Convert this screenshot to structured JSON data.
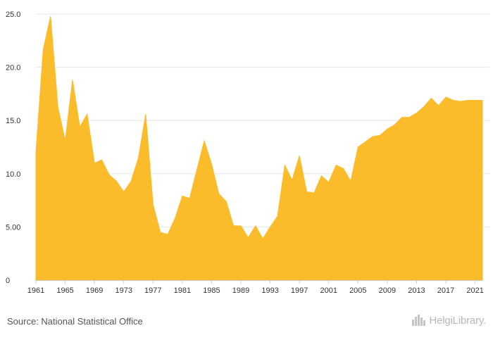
{
  "chart_data": {
    "type": "area",
    "title": "",
    "xlabel": "",
    "ylabel": "",
    "ylim": [
      0,
      25
    ],
    "y_ticks": [
      "0",
      "5.00",
      "10.0",
      "15.0",
      "20.0",
      "25.0"
    ],
    "y_tick_values": [
      0,
      5,
      10,
      15,
      20,
      25
    ],
    "x_ticks": [
      "1961",
      "1965",
      "1969",
      "1973",
      "1977",
      "1981",
      "1985",
      "1989",
      "1993",
      "1997",
      "2001",
      "2005",
      "2009",
      "2013",
      "2017",
      "2021"
    ],
    "grid": true,
    "legend": "none",
    "color": "#FBBC2C",
    "x": [
      1961,
      1962,
      1963,
      1964,
      1965,
      1966,
      1967,
      1968,
      1969,
      1970,
      1971,
      1972,
      1973,
      1974,
      1975,
      1976,
      1977,
      1978,
      1979,
      1980,
      1981,
      1982,
      1983,
      1984,
      1985,
      1986,
      1987,
      1988,
      1989,
      1990,
      1991,
      1992,
      1993,
      1994,
      1995,
      1996,
      1997,
      1998,
      1999,
      2000,
      2001,
      2002,
      2003,
      2004,
      2005,
      2006,
      2007,
      2008,
      2009,
      2010,
      2011,
      2012,
      2013,
      2014,
      2015,
      2016,
      2017,
      2018,
      2019,
      2020,
      2021,
      2022
    ],
    "values": [
      12.0,
      21.7,
      24.8,
      16.3,
      13.1,
      18.8,
      14.4,
      15.6,
      11.0,
      11.3,
      9.9,
      9.3,
      8.3,
      9.3,
      11.5,
      15.6,
      7.1,
      4.5,
      4.3,
      5.8,
      7.9,
      7.7,
      10.4,
      13.1,
      10.9,
      8.1,
      7.4,
      5.1,
      5.1,
      4.0,
      5.1,
      3.9,
      5.0,
      6.0,
      10.8,
      9.4,
      11.7,
      8.3,
      8.2,
      9.8,
      9.2,
      10.8,
      10.5,
      9.3,
      12.5,
      13.0,
      13.5,
      13.6,
      14.2,
      14.6,
      15.3,
      15.3,
      15.7,
      16.3,
      17.1,
      16.4,
      17.2,
      16.9,
      16.8,
      16.9,
      16.9,
      16.9
    ]
  },
  "footer": {
    "source": "Source: National Statistical Office",
    "brand": "HelgiLibrary.",
    "brand_icon": "helgi-library-logo-icon"
  }
}
